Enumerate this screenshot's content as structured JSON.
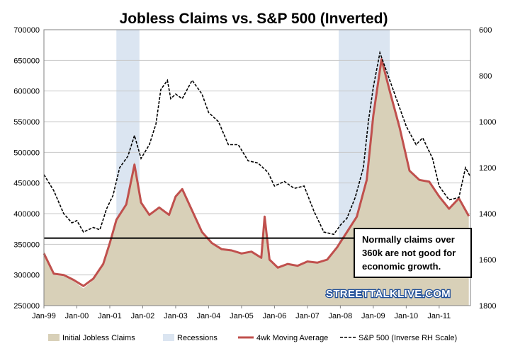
{
  "chart_data": {
    "type": "area",
    "title": "Jobless Claims vs. S&P 500 (Inverted)",
    "x_tick_labels": [
      "Jan-99",
      "Jan-00",
      "Jan-01",
      "Jan-02",
      "Jan-03",
      "Jan-04",
      "Jan-05",
      "Jan-06",
      "Jan-07",
      "Jan-08",
      "Jan-09",
      "Jan-10",
      "Jan-11"
    ],
    "x_range": [
      1999.0,
      2011.95
    ],
    "y_left": {
      "range": [
        250000,
        700000
      ],
      "ticks": [
        250000,
        300000,
        350000,
        400000,
        450000,
        500000,
        550000,
        600000,
        650000,
        700000
      ]
    },
    "y_right": {
      "range": [
        1800,
        600
      ],
      "inverted": true,
      "ticks": [
        600,
        800,
        1000,
        1200,
        1400,
        1600,
        1800
      ]
    },
    "recessions": [
      {
        "start": 2001.2,
        "end": 2001.9
      },
      {
        "start": 2007.95,
        "end": 2009.5
      }
    ],
    "series": [
      {
        "name": "Initial Jobless Claims",
        "color": "#d8d0b8",
        "x": [
          1999.0,
          1999.3,
          1999.6,
          1999.9,
          2000.2,
          2000.5,
          2000.8,
          2001.0,
          2001.2,
          2001.5,
          2001.75,
          2001.95,
          2002.2,
          2002.5,
          2002.8,
          2003.0,
          2003.2,
          2003.5,
          2003.8,
          2004.1,
          2004.4,
          2004.7,
          2005.0,
          2005.3,
          2005.6,
          2005.7,
          2005.85,
          2006.1,
          2006.4,
          2006.7,
          2007.0,
          2007.3,
          2007.6,
          2007.9,
          2008.2,
          2008.5,
          2008.8,
          2009.0,
          2009.25,
          2009.5,
          2009.8,
          2010.1,
          2010.4,
          2010.7,
          2011.0,
          2011.3,
          2011.6,
          2011.9
        ],
        "values": [
          340000,
          300000,
          298000,
          290000,
          278000,
          292000,
          318000,
          352000,
          392000,
          418000,
          485000,
          418000,
          398000,
          412000,
          398000,
          430000,
          442000,
          405000,
          370000,
          352000,
          342000,
          340000,
          335000,
          338000,
          328000,
          398000,
          325000,
          310000,
          318000,
          315000,
          322000,
          320000,
          325000,
          345000,
          370000,
          395000,
          455000,
          560000,
          655000,
          600000,
          540000,
          470000,
          455000,
          452000,
          428000,
          408000,
          425000,
          396000
        ]
      },
      {
        "name": "4wk Moving Average",
        "color": "#c0504d",
        "x": [
          1999.0,
          1999.3,
          1999.6,
          1999.9,
          2000.2,
          2000.5,
          2000.8,
          2001.0,
          2001.2,
          2001.5,
          2001.75,
          2001.95,
          2002.2,
          2002.5,
          2002.8,
          2003.0,
          2003.2,
          2003.5,
          2003.8,
          2004.1,
          2004.4,
          2004.7,
          2005.0,
          2005.3,
          2005.6,
          2005.7,
          2005.85,
          2006.1,
          2006.4,
          2006.7,
          2007.0,
          2007.3,
          2007.6,
          2007.9,
          2008.2,
          2008.5,
          2008.8,
          2009.0,
          2009.25,
          2009.5,
          2009.8,
          2010.1,
          2010.4,
          2010.7,
          2011.0,
          2011.3,
          2011.6,
          2011.9
        ],
        "values": [
          335000,
          302000,
          300000,
          292000,
          282000,
          294000,
          318000,
          352000,
          390000,
          415000,
          480000,
          418000,
          398000,
          410000,
          398000,
          428000,
          440000,
          405000,
          370000,
          352000,
          342000,
          340000,
          335000,
          338000,
          328000,
          395000,
          325000,
          312000,
          318000,
          315000,
          322000,
          320000,
          325000,
          345000,
          370000,
          395000,
          455000,
          560000,
          652000,
          600000,
          540000,
          470000,
          455000,
          452000,
          428000,
          408000,
          425000,
          396000
        ]
      },
      {
        "name": "S&P 500 (Inverse RH Scale)",
        "color": "#000000",
        "axis": "right",
        "x": [
          1999.0,
          1999.3,
          1999.6,
          1999.85,
          2000.0,
          2000.2,
          2000.5,
          2000.7,
          2000.9,
          2001.1,
          2001.3,
          2001.55,
          2001.75,
          2001.95,
          2002.2,
          2002.4,
          2002.55,
          2002.75,
          2002.85,
          2003.0,
          2003.2,
          2003.5,
          2003.8,
          2004.0,
          2004.3,
          2004.6,
          2004.9,
          2005.2,
          2005.5,
          2005.8,
          2006.0,
          2006.3,
          2006.6,
          2006.9,
          2007.2,
          2007.5,
          2007.8,
          2008.0,
          2008.2,
          2008.45,
          2008.7,
          2008.85,
          2009.0,
          2009.2,
          2009.4,
          2009.7,
          2010.0,
          2010.3,
          2010.5,
          2010.8,
          2011.0,
          2011.3,
          2011.6,
          2011.8,
          2011.95
        ],
        "values": [
          1230,
          1300,
          1400,
          1440,
          1430,
          1480,
          1460,
          1470,
          1380,
          1320,
          1200,
          1150,
          1060,
          1160,
          1100,
          1010,
          860,
          820,
          900,
          880,
          900,
          820,
          880,
          960,
          1000,
          1100,
          1100,
          1170,
          1180,
          1220,
          1280,
          1260,
          1290,
          1280,
          1390,
          1480,
          1490,
          1450,
          1420,
          1330,
          1200,
          1000,
          850,
          700,
          780,
          900,
          1020,
          1100,
          1070,
          1160,
          1280,
          1340,
          1330,
          1200,
          1240
        ]
      }
    ],
    "threshold": {
      "value": 360000
    },
    "annotation": "Normally claims over 360k are not good for economic growth.",
    "annotation_lines": [
      "Normally claims over",
      "360k are not good for",
      "economic growth."
    ],
    "watermark": "STREETTALKLIVE.COM",
    "legend": {
      "placement": "bottom",
      "items": [
        {
          "label": "Initial Jobless Claims",
          "swatch": "area",
          "color": "#d8d0b8"
        },
        {
          "label": "Recessions",
          "swatch": "area",
          "color": "#dbe5f1"
        },
        {
          "label": "4wk Moving Average",
          "swatch": "line",
          "color": "#c0504d"
        },
        {
          "label": "S&P 500 (Inverse RH Scale)",
          "swatch": "dash",
          "color": "#000000"
        }
      ]
    },
    "colors": {
      "claims_fill": "#d8d0b8",
      "recession_fill": "#dbe5f1",
      "ma_line": "#c0504d",
      "sp500_line": "#000000",
      "gridline": "#c8c8c8"
    }
  }
}
